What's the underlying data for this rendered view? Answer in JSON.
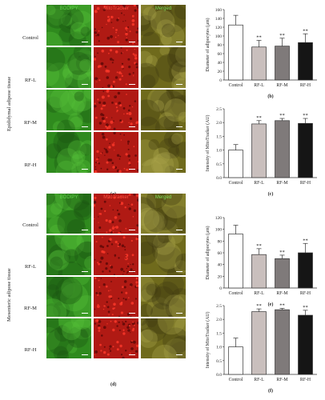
{
  "epididymal": {
    "side_label": "Epididymal adipose tissue",
    "col_headers": [
      "BODIPY",
      "MitoTracker",
      "Merged"
    ],
    "row_labels": [
      "Control",
      "RF-L",
      "RF-M",
      "RF-H"
    ],
    "panel_letter": "(a)"
  },
  "mesenteric": {
    "side_label": "Mesenteric adipose tissue",
    "col_headers": [
      "BODIPY",
      "MitoTracker",
      "Merged"
    ],
    "row_labels": [
      "Control",
      "RF-L",
      "RF-M",
      "RF-H"
    ],
    "panel_letter": "(d)"
  },
  "colors": {
    "bodipy": "#2f8a1e",
    "mito": "#b01a14",
    "merged": "#6f6a1c",
    "bar_fills": [
      "#ffffff",
      "#c9bfbd",
      "#7f7a7a",
      "#151515"
    ]
  },
  "chart_data": [
    {
      "id": "b",
      "panel_letter": "(b)",
      "type": "bar",
      "categories": [
        "Control",
        "RF-L",
        "RF-M",
        "RF-H"
      ],
      "values": [
        125,
        75,
        77,
        85
      ],
      "errors": [
        22,
        15,
        18,
        20
      ],
      "significance": [
        "",
        "**",
        "**",
        "**"
      ],
      "ylabel": "Diameter of adipocytes (μm)",
      "ylim": [
        0,
        160
      ],
      "yticks": [
        0,
        20,
        40,
        60,
        80,
        100,
        120,
        140,
        160
      ]
    },
    {
      "id": "c",
      "panel_letter": "(c)",
      "type": "bar",
      "categories": [
        "Control",
        "RF-L",
        "RF-M",
        "RF-H"
      ],
      "values": [
        1.0,
        1.95,
        2.07,
        1.97
      ],
      "errors": [
        0.2,
        0.12,
        0.08,
        0.18
      ],
      "significance": [
        "",
        "**",
        "**",
        "**"
      ],
      "ylabel": "Intensity of MitoTracker (AU)",
      "ylim": [
        0,
        2.5
      ],
      "yticks": [
        "0.0",
        "0.5",
        "1.0",
        "1.5",
        "2.0",
        "2.5"
      ]
    },
    {
      "id": "e",
      "panel_letter": "(e)",
      "type": "bar",
      "categories": [
        "Control",
        "RF-L",
        "RF-M",
        "RF-H"
      ],
      "values": [
        92,
        57,
        50,
        60
      ],
      "errors": [
        15,
        10,
        6,
        16
      ],
      "significance": [
        "",
        "**",
        "**",
        "**"
      ],
      "ylabel": "Diameter of adipocytes (μm)",
      "ylim": [
        0,
        120
      ],
      "yticks": [
        0,
        20,
        40,
        60,
        80,
        100,
        120
      ]
    },
    {
      "id": "f",
      "panel_letter": "(f)",
      "type": "bar",
      "categories": [
        "Control",
        "RF-L",
        "RF-M",
        "RF-H"
      ],
      "values": [
        1.0,
        2.28,
        2.35,
        2.15
      ],
      "errors": [
        0.32,
        0.1,
        0.05,
        0.18
      ],
      "significance": [
        "",
        "**",
        "**",
        "**"
      ],
      "ylabel": "Intensity of MitoTracker (AU)",
      "ylim": [
        0,
        2.5
      ],
      "yticks": [
        "0.0",
        "0.5",
        "1.0",
        "1.5",
        "2.0",
        "2.5"
      ]
    }
  ]
}
